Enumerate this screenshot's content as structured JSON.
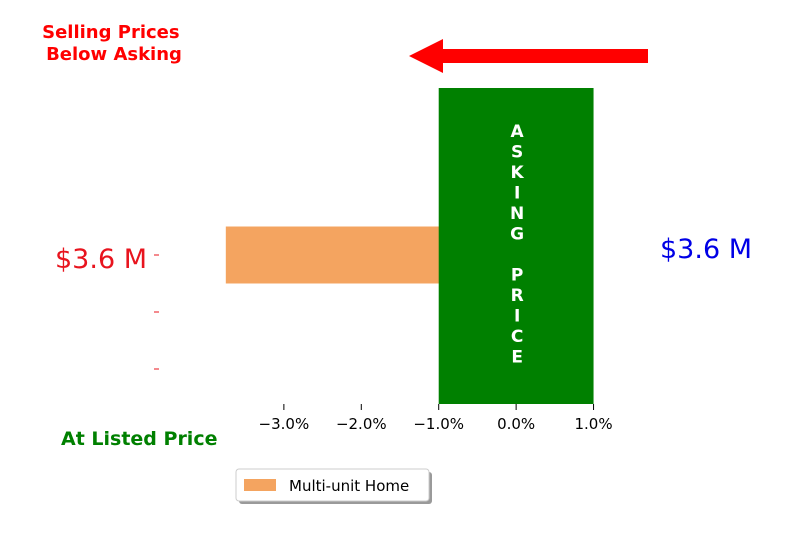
{
  "chart_data": {
    "type": "bar",
    "orientation": "horizontal",
    "categories": [
      "",
      "",
      ""
    ],
    "series": [
      {
        "name": "Multi-unit Home",
        "values": [
          -3.75,
          0,
          0
        ],
        "color": "#f4a460"
      }
    ],
    "xlim": [
      -4.6,
      1.6
    ],
    "x_ticks": [
      -3,
      -2,
      -1,
      0,
      1
    ],
    "x_tick_labels": [
      "−3.0%",
      "−2.0%",
      "−1.0%",
      "0.0%",
      "1.0%"
    ],
    "grid": false,
    "legend_placement": "bottom-center",
    "asking_price_band": {
      "x_start": -1.0,
      "x_end": 1.0,
      "color": "#008000",
      "label": "ASKING PRICE"
    },
    "arrow": {
      "direction": "left",
      "color": "#ff0000"
    },
    "annotations": {
      "top_left": "Selling Prices\nBelow Asking",
      "bottom_left": "At Listed Price",
      "left_price": "$3.6 M",
      "right_price": "$3.6 M"
    },
    "colors": {
      "red": "#ff0000",
      "green": "#008000",
      "blue": "#0000e6",
      "bar": "#f4a460"
    }
  }
}
